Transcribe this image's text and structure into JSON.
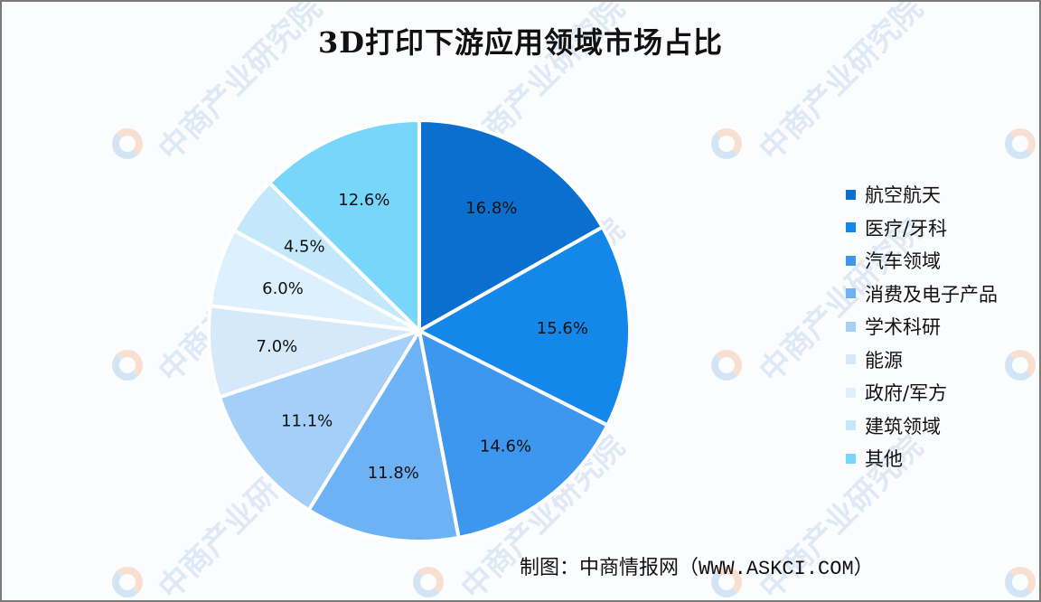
{
  "title": "3D打印下游应用领域市场占比",
  "source": {
    "prefix": "制图：中商情报网（",
    "url": "WWW.ASKCI.COM",
    "suffix": "）"
  },
  "watermark": {
    "text": "中商产业研究院"
  },
  "legend": {
    "items": [
      {
        "label": "航空航天",
        "color": "#0b6fd0"
      },
      {
        "label": "医疗/牙科",
        "color": "#1387ea"
      },
      {
        "label": "汽车领域",
        "color": "#3d97ee"
      },
      {
        "label": "消费及电子产品",
        "color": "#6db2f4"
      },
      {
        "label": "学术科研",
        "color": "#a3cff8"
      },
      {
        "label": "能源",
        "color": "#d6e9fb"
      },
      {
        "label": "政府/军方",
        "color": "#dcf0fd"
      },
      {
        "label": "建筑领域",
        "color": "#c4e8fb"
      },
      {
        "label": "其他",
        "color": "#78d6fb"
      }
    ]
  },
  "chart_data": {
    "type": "pie",
    "title": "3D打印下游应用领域市场占比",
    "categories": [
      "航空航天",
      "医疗/牙科",
      "汽车领域",
      "消费及电子产品",
      "学术科研",
      "能源",
      "政府/军方",
      "建筑领域",
      "其他"
    ],
    "values": [
      16.8,
      15.6,
      14.6,
      11.8,
      11.1,
      7.0,
      6.0,
      4.5,
      12.6
    ],
    "labels": [
      "16.8%",
      "15.6%",
      "14.6%",
      "11.8%",
      "11.1%",
      "7.0%",
      "6.0%",
      "4.5%",
      "12.6%"
    ],
    "colors": [
      "#0b6fd0",
      "#1387ea",
      "#3d97ee",
      "#6db2f4",
      "#a3cff8",
      "#d6e9fb",
      "#dcf0fd",
      "#c4e8fb",
      "#78d6fb"
    ],
    "start_angle": "12 o'clock",
    "direction": "clockwise",
    "legend_position": "right",
    "unit": "%"
  }
}
